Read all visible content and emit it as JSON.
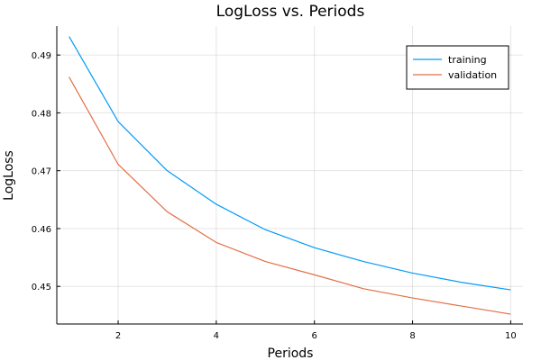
{
  "chart_data": {
    "type": "line",
    "title": "LogLoss vs. Periods",
    "xlabel": "Periods",
    "ylabel": "LogLoss",
    "xlim": [
      0.75,
      10.25
    ],
    "ylim": [
      0.4435,
      0.495
    ],
    "xticks": [
      2,
      4,
      6,
      8,
      10
    ],
    "yticks": [
      0.45,
      0.46,
      0.47,
      0.48,
      0.49
    ],
    "grid": true,
    "legend_position": "top-right",
    "x": [
      1,
      2,
      3,
      4,
      5,
      6,
      7,
      8,
      9,
      10
    ],
    "series": [
      {
        "name": "training",
        "color": "#009AF9",
        "values": [
          0.4932,
          0.4785,
          0.47,
          0.4642,
          0.4598,
          0.4567,
          0.4543,
          0.4523,
          0.4507,
          0.4494
        ]
      },
      {
        "name": "validation",
        "color": "#E26F46",
        "values": [
          0.4862,
          0.4711,
          0.4629,
          0.4576,
          0.4543,
          0.452,
          0.4496,
          0.448,
          0.4466,
          0.4452
        ]
      }
    ]
  }
}
